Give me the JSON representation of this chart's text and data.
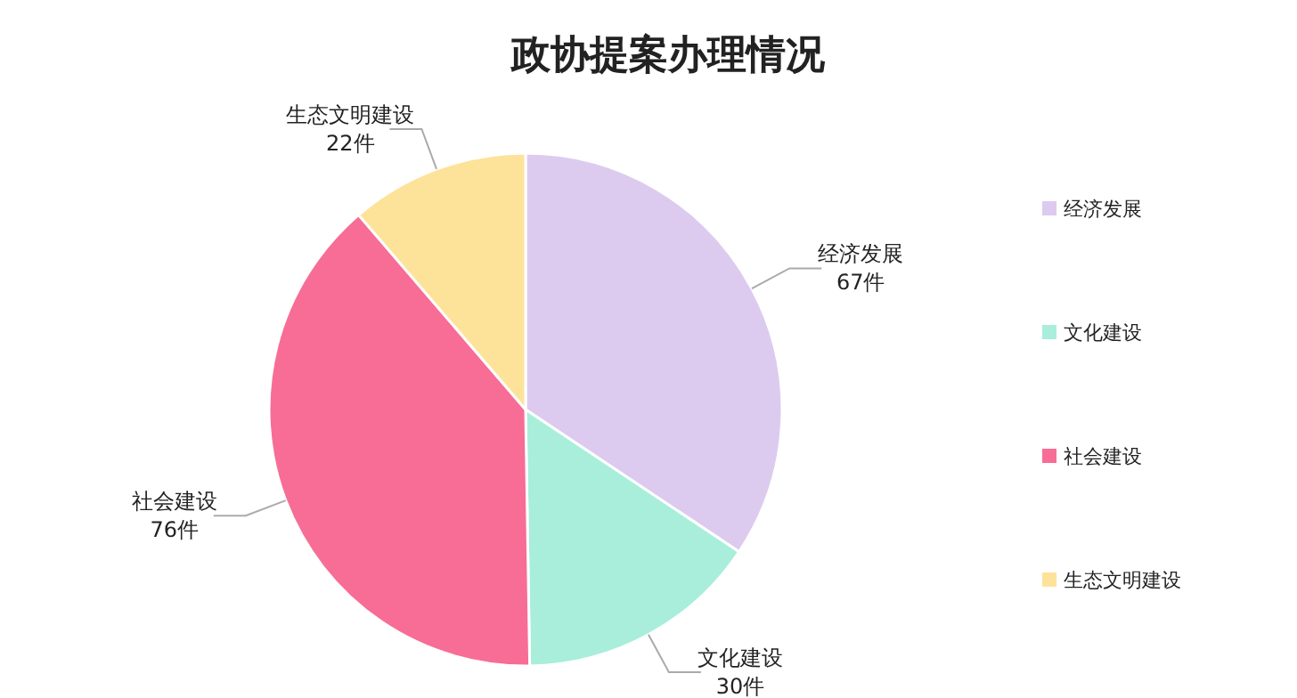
{
  "chart_data": {
    "type": "pie",
    "title": "政协提案办理情况",
    "categories": [
      "经济发展",
      "文化建设",
      "社会建设",
      "生态文明建设"
    ],
    "values": [
      67,
      30,
      76,
      22
    ],
    "value_labels": [
      "67件",
      "30件",
      "76件",
      "22件"
    ],
    "colors": [
      "#dccbef",
      "#a8eedb",
      "#f76d95",
      "#fde39a"
    ],
    "legend": "right"
  }
}
